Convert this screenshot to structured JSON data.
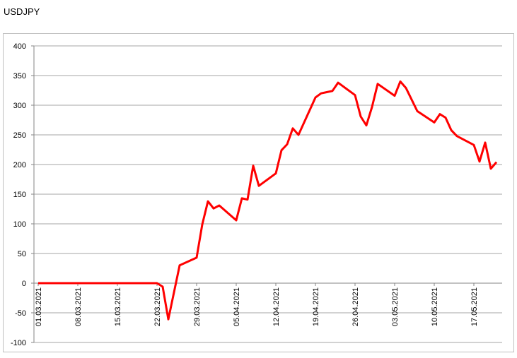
{
  "chart_data": {
    "type": "line",
    "title": "USDJPY",
    "x": [
      "01.03.2021",
      "08.03.2021",
      "15.03.2021",
      "22.03.2021",
      "23.03.2021",
      "24.03.2021",
      "26.03.2021",
      "29.03.2021",
      "30.03.2021",
      "31.03.2021",
      "01.04.2021",
      "02.04.2021",
      "05.04.2021",
      "06.04.2021",
      "07.04.2021",
      "08.04.2021",
      "09.04.2021",
      "12.04.2021",
      "13.04.2021",
      "14.04.2021",
      "15.04.2021",
      "16.04.2021",
      "19.04.2021",
      "20.04.2021",
      "21.04.2021",
      "22.04.2021",
      "23.04.2021",
      "26.04.2021",
      "27.04.2021",
      "28.04.2021",
      "29.04.2021",
      "30.04.2021",
      "03.05.2021",
      "04.05.2021",
      "05.05.2021",
      "07.05.2021",
      "10.05.2021",
      "11.05.2021",
      "12.05.2021",
      "13.05.2021",
      "14.05.2021",
      "17.05.2021",
      "18.05.2021",
      "19.05.2021",
      "20.05.2021",
      "21.05.2021"
    ],
    "series": [
      {
        "color": "#ff0000",
        "values": [
          0,
          0,
          0,
          0,
          -6,
          -61,
          30,
          43,
          99,
          138,
          126,
          131,
          106,
          143,
          141,
          198,
          164,
          185,
          224,
          234,
          261,
          250,
          313,
          320,
          322,
          324,
          338,
          317,
          281,
          266,
          297,
          336,
          316,
          340,
          329,
          290,
          271,
          285,
          279,
          258,
          248,
          233,
          205,
          237,
          193,
          204
        ]
      }
    ],
    "xlim": [
      "01.03.2021",
      "22.05.2021"
    ],
    "xticks": [
      "01.03.2021",
      "08.03.2021",
      "15.03.2021",
      "22.03.2021",
      "29.03.2021",
      "05.04.2021",
      "12.04.2021",
      "19.04.2021",
      "26.04.2021",
      "03.05.2021",
      "10.05.2021",
      "17.05.2021"
    ],
    "ylim": [
      -100,
      400
    ],
    "yticks": [
      -100,
      -50,
      0,
      50,
      100,
      150,
      200,
      250,
      300,
      350,
      400
    ],
    "grid": true
  }
}
